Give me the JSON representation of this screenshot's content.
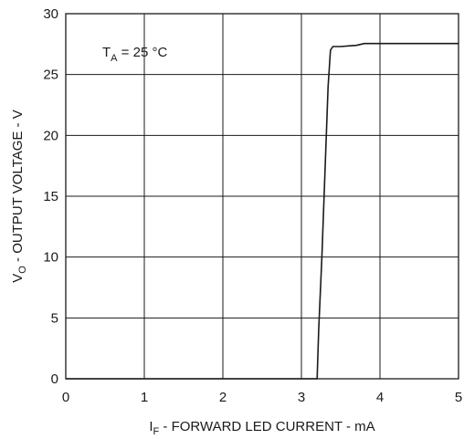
{
  "chart_data": {
    "type": "line",
    "xlabel": {
      "main": "I",
      "sub": "F",
      "rest": " - FORWARD LED CURRENT - mA"
    },
    "ylabel": {
      "main": "V",
      "sub": "O",
      "rest": " - OUTPUT VOLTAGE - V"
    },
    "annotation": {
      "main": "T",
      "sub": "A",
      "rest": " = 25 °C"
    },
    "xlim": [
      0,
      5
    ],
    "ylim": [
      0,
      30
    ],
    "xticks": [
      0,
      1,
      2,
      3,
      4,
      5
    ],
    "yticks": [
      0,
      5,
      10,
      15,
      20,
      25,
      30
    ],
    "grid": true,
    "series": [
      {
        "points": [
          [
            0.0,
            0.0
          ],
          [
            3.2,
            0.0
          ],
          [
            3.22,
            4.0
          ],
          [
            3.26,
            10.0
          ],
          [
            3.3,
            17.0
          ],
          [
            3.34,
            24.0
          ],
          [
            3.37,
            27.0
          ],
          [
            3.4,
            27.3
          ],
          [
            3.5,
            27.3
          ],
          [
            3.6,
            27.35
          ],
          [
            3.7,
            27.4
          ],
          [
            3.8,
            27.55
          ],
          [
            4.0,
            27.55
          ],
          [
            5.0,
            27.55
          ]
        ]
      }
    ]
  }
}
